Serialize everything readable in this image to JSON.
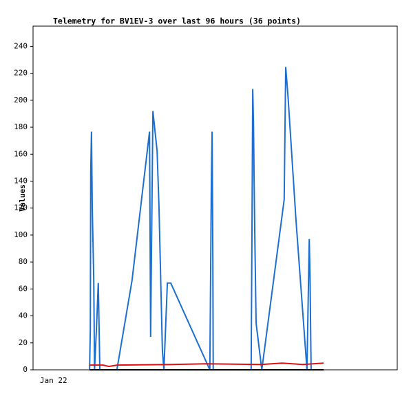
{
  "chart_data": {
    "type": "line",
    "title": "Telemetry for BV1EV-3 over last 96 hours (36 points)",
    "y_label": "Values",
    "xlim": [
      0,
      96
    ],
    "xticks": [
      {
        "value": 5.4,
        "label": "Jan 22"
      }
    ],
    "ylim": [
      0,
      255
    ],
    "yticks": [
      0,
      20,
      40,
      60,
      80,
      100,
      120,
      140,
      160,
      180,
      200,
      220,
      240
    ],
    "grid": false,
    "series": [
      {
        "color": "#1a6fd0",
        "x": [
          14.9,
          15.1,
          15.2,
          15.4,
          15.6,
          16.0,
          16.2,
          16.7,
          17.2,
          17.6,
          22.1,
          26.1,
          30.7,
          31.0,
          31.6,
          32.7,
          33.2,
          34.1,
          34.5,
          35.4,
          36.3,
          46.6,
          47.0,
          47.2,
          47.4,
          47.5,
          57.5,
          57.7,
          57.9,
          58.1,
          58.4,
          58.8,
          60.3,
          66.2,
          66.6,
          67.2,
          69.3,
          72.2,
          72.8,
          73.0,
          73.3
        ],
        "values": [
          0,
          29.6,
          147,
          176.7,
          121.5,
          66.4,
          0,
          29.6,
          64.4,
          0,
          0,
          66.4,
          176.7,
          24.5,
          192,
          162.4,
          121.5,
          14.3,
          0,
          64.4,
          64.4,
          0,
          137.9,
          176.7,
          80.7,
          0,
          0,
          102.1,
          208.4,
          182.8,
          111.3,
          34.7,
          0,
          126.4,
          224.7,
          203.3,
          111.3,
          0,
          97,
          70.5,
          0
        ]
      },
      {
        "color": "#e01010",
        "x": [
          14.9,
          18.5,
          20.0,
          22.1,
          36.7,
          45.7,
          60.3,
          65.7,
          71.1,
          76.6
        ],
        "values": [
          3.5,
          3.5,
          2.5,
          3.5,
          4,
          4.5,
          4,
          5,
          4,
          5
        ]
      },
      {
        "color": "#000000",
        "x": [
          14.9,
          76.6
        ],
        "values": [
          0,
          0
        ]
      }
    ]
  }
}
